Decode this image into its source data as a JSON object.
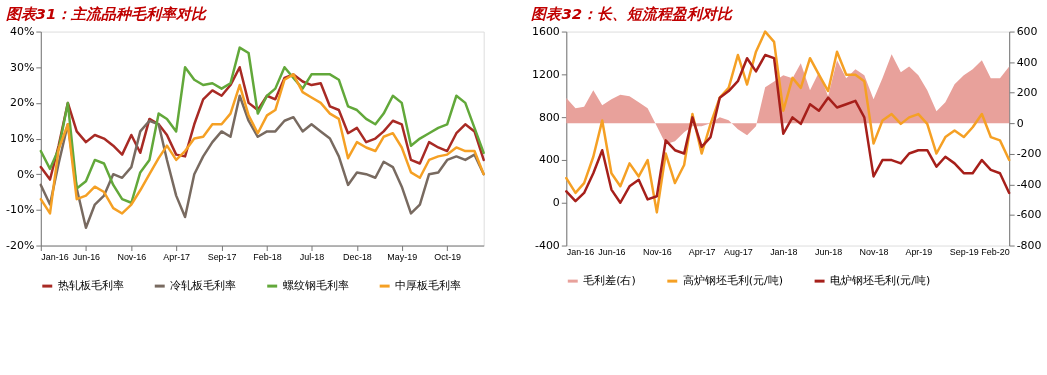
{
  "chart_data": [
    {
      "type": "line",
      "title": "图表31：主流品种毛利率对比",
      "x": [
        "2016-01",
        "2016-02",
        "2016-03",
        "2016-04",
        "2016-05",
        "2016-06",
        "2016-07",
        "2016-08",
        "2016-09",
        "2016-10",
        "2016-11",
        "2016-12",
        "2017-01",
        "2017-02",
        "2017-03",
        "2017-04",
        "2017-05",
        "2017-06",
        "2017-07",
        "2017-08",
        "2017-09",
        "2017-10",
        "2017-11",
        "2017-12",
        "2018-01",
        "2018-02",
        "2018-03",
        "2018-04",
        "2018-05",
        "2018-06",
        "2018-07",
        "2018-08",
        "2018-09",
        "2018-10",
        "2018-11",
        "2018-12",
        "2019-01",
        "2019-02",
        "2019-03",
        "2019-04",
        "2019-05",
        "2019-06",
        "2019-07",
        "2019-08",
        "2019-09",
        "2019-10",
        "2019-11",
        "2019-12",
        "2020-01",
        "2020-02"
      ],
      "xlim": [
        "2016-01",
        "2020-02"
      ],
      "xticks": [
        {
          "value": "2016-01",
          "label": "Jan-16"
        },
        {
          "value": "2016-06",
          "label": "Jun-16"
        },
        {
          "value": "2016-11",
          "label": "Nov-16"
        },
        {
          "value": "2017-04",
          "label": "Apr-17"
        },
        {
          "value": "2017-09",
          "label": "Sep-17"
        },
        {
          "value": "2018-02",
          "label": "Feb-18"
        },
        {
          "value": "2018-07",
          "label": "Jul-18"
        },
        {
          "value": "2018-12",
          "label": "Dec-18"
        },
        {
          "value": "2019-05",
          "label": "May-19"
        },
        {
          "value": "2019-10",
          "label": "Oct-19"
        }
      ],
      "ylim": [
        -20,
        40
      ],
      "yticks": [
        {
          "value": -20,
          "label": "-20%"
        },
        {
          "value": -10,
          "label": "-10%"
        },
        {
          "value": 0,
          "label": "0%"
        },
        {
          "value": 10,
          "label": "10%"
        },
        {
          "value": 20,
          "label": "20%"
        },
        {
          "value": 30,
          "label": "30%"
        },
        {
          "value": 40,
          "label": "40%"
        }
      ],
      "grid": false,
      "legend": "bottom",
      "series": [
        {
          "name": "热轧板毛利率",
          "color": "#a82a24",
          "values": [
            2,
            -1.5,
            8,
            20,
            12,
            9,
            11,
            10,
            8,
            5.5,
            11,
            6,
            15.5,
            14,
            11,
            5.5,
            5,
            14,
            21,
            23.5,
            22,
            25,
            30,
            20,
            18,
            22,
            21,
            27,
            28,
            26,
            25,
            25.5,
            19,
            18,
            11.5,
            13,
            9,
            10,
            12,
            15,
            14,
            4,
            3,
            9,
            7.5,
            6.5,
            11.5,
            14,
            12,
            4
          ]
        },
        {
          "name": "冷轧板毛利率",
          "color": "#786a60",
          "values": [
            -3,
            -8.5,
            3,
            14,
            -4,
            -15,
            -8.5,
            -6,
            0,
            -1,
            2,
            12,
            15,
            14,
            4,
            -6,
            -12,
            0,
            5,
            9,
            12,
            10.5,
            22,
            15,
            10.5,
            12,
            12,
            15,
            16,
            12,
            14,
            12,
            10,
            5,
            -3,
            0.5,
            0,
            -1,
            3.5,
            2,
            -3.5,
            -11,
            -8.5,
            0,
            0.5,
            4,
            5,
            4,
            5.5,
            0
          ]
        },
        {
          "name": "螺纹钢毛利率",
          "color": "#62a83a",
          "values": [
            6.5,
            1.5,
            7,
            20,
            -4,
            -2,
            4,
            3,
            -3,
            -7,
            -8,
            0.5,
            4,
            17,
            15.5,
            12,
            30,
            26.5,
            25,
            25.5,
            24,
            25.5,
            35.5,
            34,
            17,
            22,
            24,
            30,
            27,
            24,
            28,
            28,
            28,
            26.5,
            19,
            18,
            15.5,
            14,
            17,
            22,
            20,
            8,
            10,
            11.5,
            13,
            14,
            22,
            20,
            13,
            6
          ]
        },
        {
          "name": "中厚板毛利率",
          "color": "#f5a024",
          "values": [
            -7,
            -11,
            7,
            14,
            -7,
            -6,
            -3.5,
            -5,
            -9.5,
            -11,
            -8.5,
            -4.5,
            0,
            4.5,
            8,
            4,
            6.5,
            10,
            10.5,
            14,
            14,
            17,
            25,
            16.5,
            11.5,
            16.5,
            18,
            26.5,
            28,
            23,
            21.5,
            20,
            17,
            15.5,
            4.5,
            9,
            7.5,
            6.5,
            10.5,
            11.5,
            7.5,
            0.5,
            -1,
            4,
            5,
            5.5,
            7.5,
            6.5,
            6.5,
            0
          ]
        }
      ]
    },
    {
      "type": "line",
      "title": "图表32：长、短流程盈利对比",
      "x": [
        "2016-01",
        "2016-02",
        "2016-03",
        "2016-04",
        "2016-05",
        "2016-06",
        "2016-07",
        "2016-08",
        "2016-09",
        "2016-10",
        "2016-11",
        "2016-12",
        "2017-01",
        "2017-02",
        "2017-03",
        "2017-04",
        "2017-05",
        "2017-06",
        "2017-07",
        "2017-08",
        "2017-09",
        "2017-10",
        "2017-11",
        "2017-12",
        "2018-01",
        "2018-02",
        "2018-03",
        "2018-04",
        "2018-05",
        "2018-06",
        "2018-07",
        "2018-08",
        "2018-09",
        "2018-10",
        "2018-11",
        "2018-12",
        "2019-01",
        "2019-02",
        "2019-03",
        "2019-04",
        "2019-05",
        "2019-06",
        "2019-07",
        "2019-08",
        "2019-09",
        "2019-10",
        "2019-11",
        "2019-12",
        "2020-01",
        "2020-02"
      ],
      "xlim": [
        "2016-01",
        "2020-02"
      ],
      "xticks": [
        {
          "value": "2016-01",
          "label": "Jan-16"
        },
        {
          "value": "2016-06",
          "label": "Jun-16"
        },
        {
          "value": "2016-11",
          "label": "Nov-16"
        },
        {
          "value": "2017-04",
          "label": "Apr-17"
        },
        {
          "value": "2017-08",
          "label": "Aug-17"
        },
        {
          "value": "2018-01",
          "label": "Jan-18"
        },
        {
          "value": "2018-06",
          "label": "Jun-18"
        },
        {
          "value": "2018-11",
          "label": "Nov-18"
        },
        {
          "value": "2019-04",
          "label": "Apr-19"
        },
        {
          "value": "2019-09",
          "label": "Sep-19"
        },
        {
          "value": "2020-02",
          "label": "Feb-20"
        }
      ],
      "ylim": [
        -400,
        1600
      ],
      "yticks": [
        -400,
        0,
        400,
        800,
        1200,
        1600
      ],
      "y2lim": [
        -800,
        600
      ],
      "y2ticks": [
        -800,
        -600,
        -400,
        -200,
        0,
        200,
        400,
        600
      ],
      "grid": false,
      "legend": "bottom",
      "series": [
        {
          "name": "毛利差(右)",
          "type": "area",
          "axis": "y2",
          "color": "#e8a19b",
          "values": [
            166,
            98,
            108,
            216,
            118,
            157,
            186,
            176,
            137,
            98,
            -20,
            -137,
            -118,
            -59,
            -20,
            -20,
            0,
            39,
            20,
            -39,
            -78,
            -20,
            235,
            274,
            314,
            294,
            392,
            216,
            333,
            176,
            412,
            294,
            353,
            314,
            157,
            294,
            451,
            333,
            372,
            314,
            216,
            78,
            137,
            255,
            314,
            353,
            412,
            294,
            294,
            372
          ]
        },
        {
          "name": "高炉钢坯毛利(元/吨)",
          "color": "#f5a024",
          "values": [
            230,
            92,
            184,
            430,
            768,
            276,
            154,
            368,
            246,
            399,
            -90,
            460,
            184,
            353,
            829,
            460,
            737,
            982,
            1074,
            1381,
            1105,
            1412,
            1600,
            1504,
            860,
            1167,
            1074,
            1351,
            1197,
            1044,
            1412,
            1197,
            1197,
            1136,
            553,
            768,
            829,
            737,
            798,
            829,
            737,
            460,
            614,
            675,
            614,
            706,
            829,
            614,
            583,
            399
          ]
        },
        {
          "name": "电炉钢坯毛利(元/吨)",
          "color": "#a61f1a",
          "values": [
            107,
            15,
            92,
            276,
            491,
            123,
            0,
            154,
            215,
            31,
            61,
            583,
            491,
            460,
            798,
            522,
            614,
            982,
            1044,
            1136,
            1351,
            1228,
            1381,
            1351,
            645,
            798,
            737,
            921,
            860,
            982,
            890,
            921,
            952,
            798,
            246,
            399,
            399,
            368,
            460,
            491,
            491,
            338,
            430,
            368,
            276,
            276,
            399,
            307,
            276,
            92
          ]
        }
      ]
    }
  ]
}
